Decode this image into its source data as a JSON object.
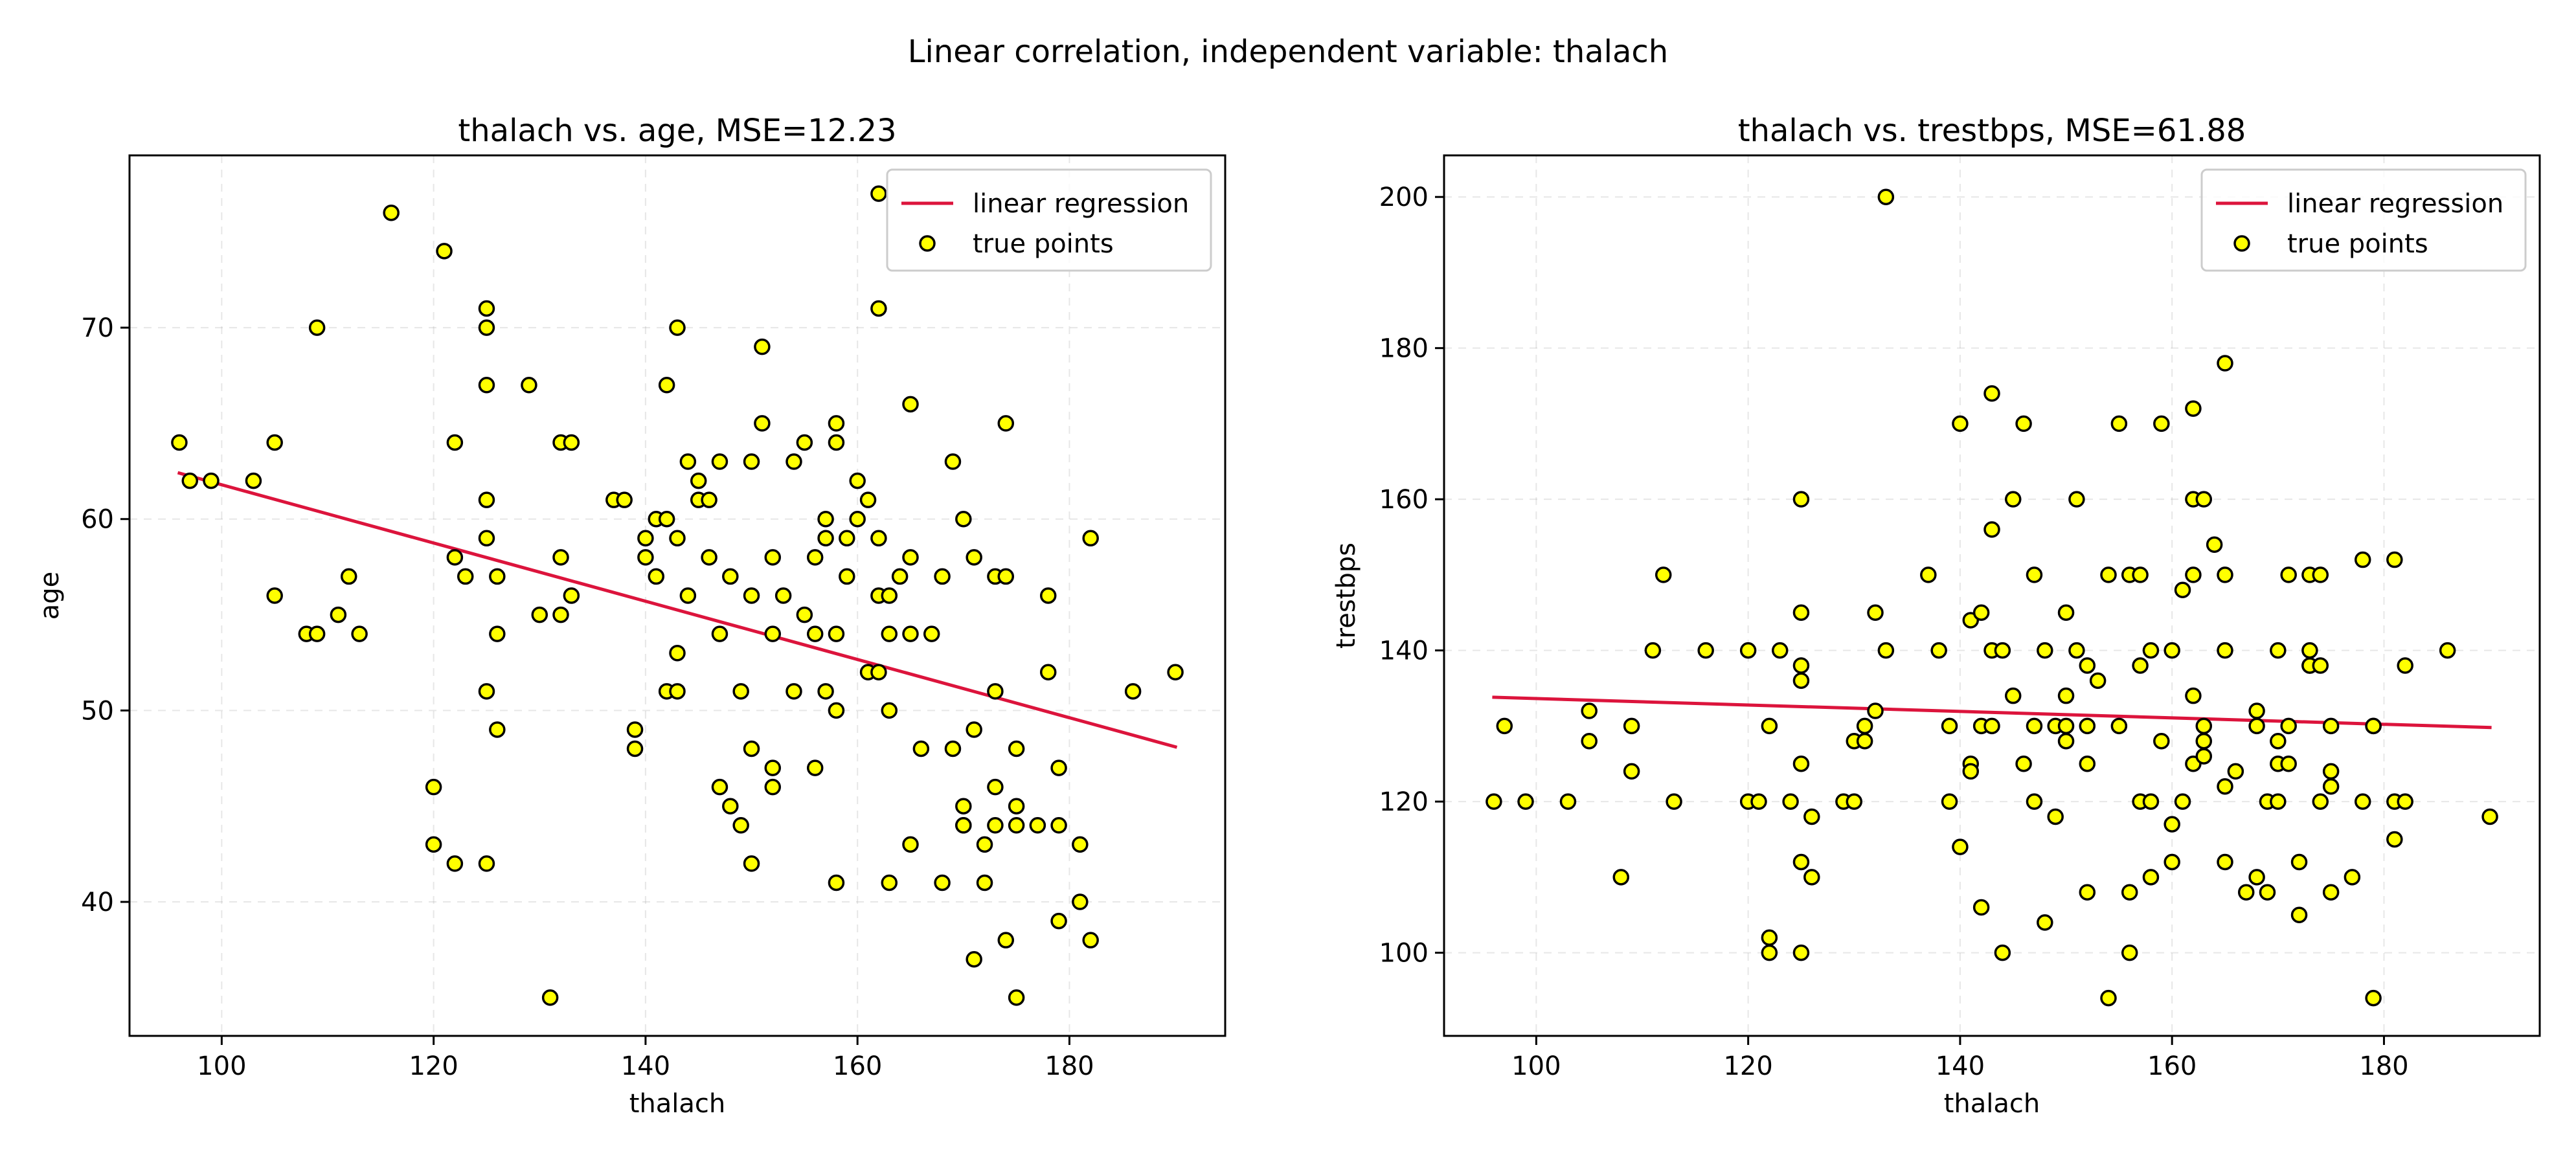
{
  "figure": {
    "suptitle": "Linear correlation, independent variable: thalach"
  },
  "colors": {
    "regression_line": "#dc143c",
    "points_fill": "#ffff00",
    "points_edge": "#000000",
    "grid": "#b0b0b0"
  },
  "chart_data": [
    {
      "type": "scatter",
      "title": "thalach vs. age, MSE=12.23",
      "xlabel": "thalach",
      "ylabel": "age",
      "xlim": [
        91.3,
        194.7
      ],
      "ylim": [
        33.0,
        79.0
      ],
      "xticks": [
        100,
        120,
        140,
        160,
        180
      ],
      "yticks": [
        40,
        50,
        60,
        70
      ],
      "grid": true,
      "legend": {
        "placement": "upper right",
        "entries": [
          "linear regression",
          "true points"
        ]
      },
      "series": [
        {
          "name": "linear regression",
          "kind": "line",
          "x": [
            96,
            190
          ],
          "y": [
            62.4,
            48.1
          ]
        },
        {
          "name": "true points",
          "kind": "scatter",
          "x": [
            96,
            97,
            99,
            103,
            105,
            105,
            108,
            109,
            109,
            111,
            112,
            113,
            116,
            120,
            120,
            121,
            122,
            122,
            122,
            123,
            125,
            125,
            125,
            125,
            125,
            125,
            125,
            126,
            126,
            126,
            129,
            130,
            131,
            132,
            132,
            132,
            133,
            133,
            137,
            138,
            139,
            139,
            140,
            140,
            141,
            141,
            142,
            142,
            142,
            143,
            143,
            143,
            143,
            144,
            144,
            145,
            145,
            146,
            146,
            147,
            147,
            147,
            148,
            148,
            149,
            149,
            150,
            150,
            150,
            150,
            151,
            151,
            152,
            152,
            152,
            152,
            153,
            154,
            154,
            155,
            155,
            156,
            156,
            156,
            157,
            157,
            157,
            158,
            158,
            158,
            158,
            158,
            159,
            159,
            160,
            160,
            161,
            161,
            162,
            162,
            162,
            162,
            162,
            163,
            163,
            163,
            163,
            164,
            165,
            165,
            165,
            165,
            166,
            167,
            168,
            168,
            169,
            169,
            170,
            170,
            170,
            170,
            171,
            171,
            171,
            172,
            172,
            173,
            173,
            173,
            173,
            174,
            174,
            174,
            175,
            175,
            175,
            175,
            177,
            178,
            178,
            179,
            179,
            179,
            181,
            181,
            182,
            182,
            186,
            190
          ],
          "y": [
            64,
            62,
            62,
            62,
            64,
            56,
            54,
            70,
            54,
            55,
            57,
            54,
            76,
            46,
            43,
            74,
            64,
            58,
            42,
            57,
            71,
            70,
            67,
            61,
            59,
            51,
            42,
            57,
            54,
            49,
            67,
            55,
            35,
            58,
            64,
            55,
            64,
            56,
            61,
            61,
            49,
            48,
            59,
            58,
            60,
            57,
            60,
            67,
            51,
            59,
            70,
            53,
            51,
            56,
            63,
            61,
            62,
            61,
            58,
            63,
            54,
            46,
            57,
            45,
            51,
            44,
            63,
            56,
            48,
            42,
            69,
            65,
            58,
            54,
            47,
            46,
            56,
            63,
            51,
            64,
            55,
            58,
            54,
            47,
            60,
            59,
            51,
            65,
            64,
            54,
            50,
            41,
            59,
            57,
            62,
            60,
            61,
            52,
            77,
            59,
            56,
            71,
            52,
            56,
            54,
            50,
            41,
            57,
            66,
            58,
            54,
            43,
            48,
            54,
            57,
            41,
            63,
            48,
            44,
            44,
            60,
            45,
            37,
            58,
            49,
            43,
            41,
            46,
            57,
            51,
            44,
            38,
            57,
            65,
            35,
            48,
            45,
            44,
            44,
            56,
            52,
            39,
            47,
            44,
            43,
            40,
            59,
            38,
            51,
            52
          ]
        }
      ]
    },
    {
      "type": "scatter",
      "title": "thalach vs. trestbps, MSE=61.88",
      "xlabel": "thalach",
      "ylabel": "trestbps",
      "xlim": [
        91.3,
        194.7
      ],
      "ylim": [
        89.0,
        205.5
      ],
      "xticks": [
        100,
        120,
        140,
        160,
        180
      ],
      "yticks": [
        100,
        120,
        140,
        160,
        180,
        200
      ],
      "grid": true,
      "legend": {
        "placement": "upper right",
        "entries": [
          "linear regression",
          "true points"
        ]
      },
      "series": [
        {
          "name": "linear regression",
          "kind": "line",
          "x": [
            96,
            190
          ],
          "y": [
            133.8,
            129.8
          ]
        },
        {
          "name": "true points",
          "kind": "scatter",
          "x": [
            96,
            97,
            99,
            103,
            105,
            105,
            108,
            109,
            109,
            111,
            112,
            113,
            116,
            120,
            120,
            121,
            122,
            122,
            122,
            123,
            124,
            125,
            125,
            125,
            125,
            125,
            125,
            125,
            126,
            126,
            129,
            130,
            130,
            131,
            131,
            132,
            132,
            133,
            133,
            137,
            138,
            139,
            139,
            140,
            140,
            141,
            141,
            141,
            142,
            142,
            142,
            143,
            143,
            143,
            143,
            144,
            144,
            145,
            145,
            146,
            146,
            147,
            147,
            147,
            148,
            148,
            149,
            149,
            150,
            150,
            150,
            150,
            151,
            151,
            152,
            152,
            152,
            152,
            153,
            154,
            154,
            155,
            155,
            156,
            156,
            156,
            157,
            157,
            157,
            158,
            158,
            158,
            159,
            159,
            160,
            160,
            160,
            161,
            161,
            162,
            162,
            162,
            162,
            162,
            163,
            163,
            163,
            163,
            164,
            165,
            165,
            165,
            165,
            165,
            166,
            167,
            168,
            168,
            168,
            169,
            169,
            170,
            170,
            170,
            170,
            171,
            171,
            171,
            172,
            172,
            173,
            173,
            173,
            173,
            174,
            174,
            174,
            175,
            175,
            175,
            175,
            177,
            178,
            178,
            179,
            179,
            179,
            181,
            181,
            181,
            182,
            182,
            186,
            190
          ],
          "y": [
            120,
            130,
            120,
            120,
            128,
            132,
            110,
            130,
            124,
            140,
            150,
            120,
            140,
            140,
            120,
            120,
            130,
            100,
            102,
            140,
            120,
            160,
            145,
            138,
            136,
            125,
            112,
            100,
            118,
            110,
            120,
            120,
            128,
            130,
            128,
            145,
            132,
            200,
            140,
            150,
            140,
            130,
            120,
            170,
            114,
            144,
            125,
            124,
            130,
            145,
            106,
            174,
            156,
            140,
            130,
            100,
            140,
            134,
            160,
            170,
            125,
            150,
            130,
            120,
            140,
            104,
            130,
            118,
            145,
            128,
            134,
            130,
            160,
            140,
            138,
            125,
            108,
            130,
            136,
            150,
            94,
            170,
            130,
            100,
            108,
            150,
            138,
            120,
            150,
            110,
            140,
            120,
            170,
            128,
            112,
            117,
            140,
            148,
            120,
            172,
            150,
            134,
            125,
            160,
            160,
            126,
            130,
            128,
            154,
            178,
            150,
            140,
            122,
            112,
            124,
            108,
            110,
            130,
            132,
            120,
            108,
            128,
            120,
            140,
            125,
            150,
            130,
            125,
            112,
            105,
            150,
            140,
            138,
            138,
            120,
            150,
            138,
            122,
            124,
            130,
            108,
            110,
            152,
            120,
            130,
            94,
            130,
            152,
            120,
            115,
            138,
            120,
            140,
            118
          ]
        }
      ]
    }
  ]
}
